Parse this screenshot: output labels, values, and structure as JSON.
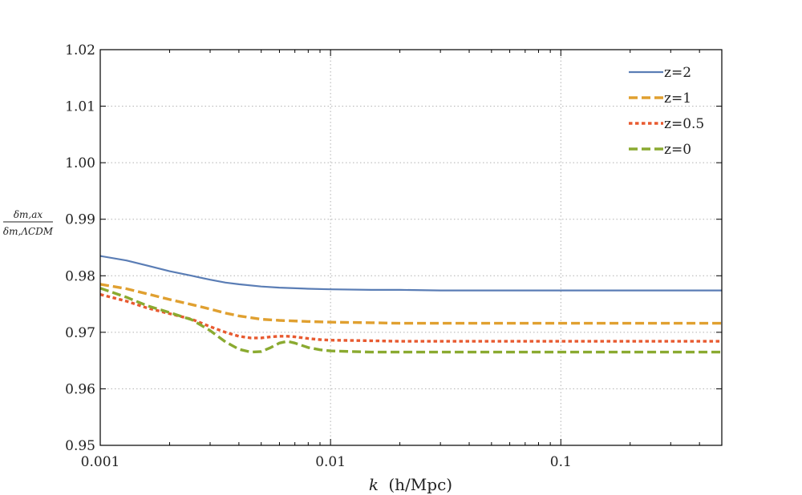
{
  "chart_data": {
    "type": "line",
    "xscale": "log",
    "xlim": [
      0.001,
      0.5
    ],
    "ylim": [
      0.95,
      1.02
    ],
    "xlabel_k": "k",
    "xlabel_unit": "(h/Mpc)",
    "ylabel_numerator": "δm,ax",
    "ylabel_denominator": "δm,ΛCDM",
    "x_ticks": [
      {
        "value": 0.001,
        "label": "0.001"
      },
      {
        "value": 0.01,
        "label": "0.01"
      },
      {
        "value": 0.1,
        "label": "0.1"
      }
    ],
    "y_ticks": [
      {
        "value": 0.95,
        "label": "0.95"
      },
      {
        "value": 0.96,
        "label": "0.96"
      },
      {
        "value": 0.97,
        "label": "0.97"
      },
      {
        "value": 0.98,
        "label": "0.98"
      },
      {
        "value": 0.99,
        "label": "0.99"
      },
      {
        "value": 1.0,
        "label": "1.00"
      },
      {
        "value": 1.01,
        "label": "1.01"
      },
      {
        "value": 1.02,
        "label": "1.02"
      }
    ],
    "grid": true,
    "legend_position": "top-right",
    "series": [
      {
        "name": "z=2",
        "color": "#5a7db5",
        "dash": "solid",
        "x": [
          0.001,
          0.0013,
          0.0016,
          0.002,
          0.0025,
          0.003,
          0.0035,
          0.004,
          0.005,
          0.006,
          0.008,
          0.01,
          0.015,
          0.02,
          0.03,
          0.05,
          0.1,
          0.2,
          0.5
        ],
        "y": [
          0.9835,
          0.9827,
          0.9818,
          0.9808,
          0.98,
          0.9793,
          0.9788,
          0.9785,
          0.9781,
          0.9779,
          0.9777,
          0.9776,
          0.9775,
          0.9775,
          0.9774,
          0.9774,
          0.9774,
          0.9774,
          0.9774
        ]
      },
      {
        "name": "z=1",
        "color": "#e0a030",
        "dash": "dashed",
        "x": [
          0.001,
          0.0013,
          0.0016,
          0.002,
          0.0025,
          0.003,
          0.0035,
          0.004,
          0.005,
          0.006,
          0.008,
          0.01,
          0.015,
          0.02,
          0.03,
          0.05,
          0.1,
          0.2,
          0.5
        ],
        "y": [
          0.9785,
          0.9777,
          0.9768,
          0.9758,
          0.9749,
          0.9741,
          0.9734,
          0.9729,
          0.9723,
          0.9721,
          0.9719,
          0.9718,
          0.9717,
          0.9716,
          0.9716,
          0.9716,
          0.9716,
          0.9716,
          0.9716
        ]
      },
      {
        "name": "z=0.5",
        "color": "#e85a30",
        "dash": "dotted",
        "x": [
          0.001,
          0.0013,
          0.0016,
          0.002,
          0.0025,
          0.003,
          0.0035,
          0.004,
          0.0045,
          0.005,
          0.0055,
          0.006,
          0.0065,
          0.007,
          0.008,
          0.009,
          0.01,
          0.015,
          0.02,
          0.03,
          0.05,
          0.1,
          0.2,
          0.5
        ],
        "y": [
          0.9767,
          0.9755,
          0.9743,
          0.9733,
          0.9723,
          0.971,
          0.97,
          0.9693,
          0.969,
          0.969,
          0.9692,
          0.9693,
          0.9693,
          0.9692,
          0.9689,
          0.9687,
          0.9686,
          0.9685,
          0.9684,
          0.9684,
          0.9684,
          0.9684,
          0.9684,
          0.9684
        ]
      },
      {
        "name": "z=0",
        "color": "#8aaa30",
        "dash": "dashed",
        "x": [
          0.001,
          0.0013,
          0.0016,
          0.002,
          0.0025,
          0.003,
          0.0035,
          0.004,
          0.0045,
          0.005,
          0.0055,
          0.006,
          0.0065,
          0.007,
          0.008,
          0.009,
          0.01,
          0.015,
          0.02,
          0.03,
          0.05,
          0.1,
          0.2,
          0.5
        ],
        "y": [
          0.9778,
          0.9762,
          0.9747,
          0.9735,
          0.9722,
          0.9703,
          0.9683,
          0.967,
          0.9665,
          0.9666,
          0.9673,
          0.9681,
          0.9684,
          0.9681,
          0.9673,
          0.9669,
          0.9667,
          0.9665,
          0.9665,
          0.9665,
          0.9665,
          0.9665,
          0.9665,
          0.9665
        ]
      }
    ]
  }
}
